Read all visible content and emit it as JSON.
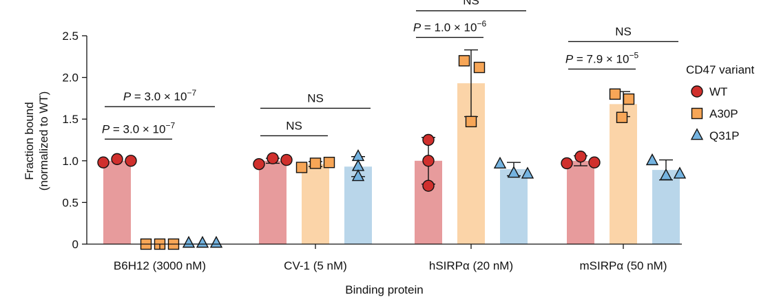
{
  "chart_data": {
    "type": "bar",
    "title": "",
    "xlabel": "Binding protein",
    "ylabel": [
      "Fraction bound",
      "(normalized to WT)"
    ],
    "ylim": [
      0,
      2.5
    ],
    "yticks": [
      {
        "value": 0,
        "label": "0"
      },
      {
        "value": 0.5,
        "label": "0.5"
      },
      {
        "value": 1.0,
        "label": "1.0"
      },
      {
        "value": 1.5,
        "label": "1.5"
      },
      {
        "value": 2.0,
        "label": "2.0"
      },
      {
        "value": 2.5,
        "label": "2.5"
      }
    ],
    "categories": [
      "B6H12 (3000 nM)",
      "CV-1 (5 nM)",
      "hSIRPα (20 nM)",
      "mSIRPα (50 nM)"
    ],
    "legend": {
      "title": "CD47 variant",
      "position": "right",
      "entries": [
        {
          "name": "WT",
          "marker": "circle"
        },
        {
          "name": "A30P",
          "marker": "square"
        },
        {
          "name": "Q31P",
          "marker": "triangle"
        }
      ]
    },
    "colors": {
      "WT_bar": "#e79b9c",
      "A30P_bar": "#fbd4a8",
      "Q31P_bar": "#b9d6ea",
      "WT_marker": "#d0302d",
      "A30P_marker": "#f7a657",
      "Q31P_marker": "#74b3e0"
    },
    "series": [
      {
        "name": "WT",
        "values": [
          1.0,
          1.0,
          1.0,
          1.0
        ],
        "error": [
          null,
          0.03,
          0.28,
          0.06
        ],
        "points": [
          [
            0.98,
            1.02,
            1.0
          ],
          [
            0.96,
            1.03,
            1.01
          ],
          [
            1.25,
            1.0,
            0.7
          ],
          [
            0.97,
            1.05,
            0.98
          ]
        ]
      },
      {
        "name": "A30P",
        "values": [
          0.0,
          0.96,
          1.93,
          1.68
        ],
        "error": [
          null,
          0.03,
          0.4,
          0.15
        ],
        "points": [
          [
            0.0,
            0.0,
            0.0
          ],
          [
            0.92,
            0.97,
            0.98
          ],
          [
            2.2,
            2.12,
            1.47
          ],
          [
            1.8,
            1.74,
            1.52
          ]
        ]
      },
      {
        "name": "Q31P",
        "values": [
          0.01,
          0.93,
          0.9,
          0.89
        ],
        "error": [
          null,
          0.12,
          0.08,
          0.12
        ],
        "points": [
          [
            0.01,
            0.01,
            0.01
          ],
          [
            1.05,
            0.93,
            0.81
          ],
          [
            0.96,
            0.85,
            0.84
          ],
          [
            1.0,
            0.82,
            0.84
          ]
        ]
      }
    ],
    "annotations": [
      {
        "category": 0,
        "from": "WT",
        "to": "A30P",
        "level": 1.26,
        "label": "P = 3.0 × 10−7",
        "segments": [
          {
            "text": "P",
            "italic": true
          },
          {
            "text": " = 3.0 × 10"
          },
          {
            "text": "−7",
            "sup": true
          }
        ]
      },
      {
        "category": 0,
        "from": "WT",
        "to": "Q31P",
        "level": 1.65,
        "label": "P = 3.0 × 10−7",
        "segments": [
          {
            "text": "P",
            "italic": true
          },
          {
            "text": " = 3.0 × 10"
          },
          {
            "text": "−7",
            "sup": true
          }
        ]
      },
      {
        "category": 1,
        "from": "WT",
        "to": "A30P",
        "level": 1.3,
        "label": "NS",
        "segments": [
          {
            "text": "NS"
          }
        ]
      },
      {
        "category": 1,
        "from": "WT",
        "to": "Q31P",
        "level": 1.63,
        "label": "NS",
        "segments": [
          {
            "text": "NS"
          }
        ]
      },
      {
        "category": 2,
        "from": "WT",
        "to": "A30P",
        "level": 2.48,
        "label": "P = 1.0 × 10−6",
        "segments": [
          {
            "text": "P",
            "italic": true
          },
          {
            "text": " = 1.0 × 10"
          },
          {
            "text": "−6",
            "sup": true
          }
        ]
      },
      {
        "category": 2,
        "from": "WT",
        "to": "Q31P",
        "level": 2.8,
        "label": "NS",
        "segments": [
          {
            "text": "NS"
          }
        ]
      },
      {
        "category": 3,
        "from": "WT",
        "to": "A30P",
        "level": 2.1,
        "label": "P = 7.9 × 10−5",
        "segments": [
          {
            "text": "P",
            "italic": true
          },
          {
            "text": " = 7.9 × 10"
          },
          {
            "text": "−5",
            "sup": true
          }
        ]
      },
      {
        "category": 3,
        "from": "WT",
        "to": "Q31P",
        "level": 2.43,
        "label": "NS",
        "segments": [
          {
            "text": "NS"
          }
        ]
      }
    ]
  }
}
